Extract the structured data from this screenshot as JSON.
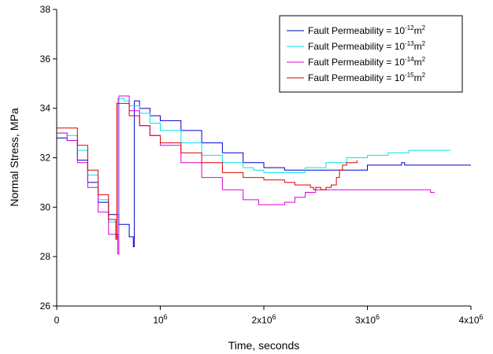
{
  "chart_data": {
    "type": "line",
    "xlabel": "Time, seconds",
    "ylabel": "Normal Stress, MPa",
    "xlim": [
      0,
      4000000
    ],
    "ylim": [
      26,
      38
    ],
    "x_ticks": [
      {
        "value": 0,
        "base": "0",
        "exp": ""
      },
      {
        "value": 1000000,
        "base": "10",
        "exp": "6"
      },
      {
        "value": 2000000,
        "base": "2x10",
        "exp": "6"
      },
      {
        "value": 3000000,
        "base": "3x10",
        "exp": "6"
      },
      {
        "value": 4000000,
        "base": "4x10",
        "exp": "6"
      }
    ],
    "y_ticks": [
      26,
      28,
      30,
      32,
      34,
      36,
      38
    ],
    "grid": false,
    "legend_position": "top-right",
    "series": [
      {
        "name": "Fault Permeability = 10",
        "name_exp": "-12",
        "name_suffix": "m",
        "name_suffix_exp": "2",
        "color": "#0000cc",
        "points": [
          [
            0,
            32.8
          ],
          [
            100000,
            32.7
          ],
          [
            200000,
            31.9
          ],
          [
            300000,
            31.0
          ],
          [
            400000,
            30.2
          ],
          [
            500000,
            29.7
          ],
          [
            600000,
            29.3
          ],
          [
            700000,
            28.8
          ],
          [
            740000,
            28.4
          ],
          [
            750000,
            34.3
          ],
          [
            800000,
            34.0
          ],
          [
            900000,
            33.7
          ],
          [
            1000000,
            33.5
          ],
          [
            1200000,
            33.1
          ],
          [
            1400000,
            32.6
          ],
          [
            1600000,
            32.2
          ],
          [
            1800000,
            31.8
          ],
          [
            2000000,
            31.6
          ],
          [
            2200000,
            31.5
          ],
          [
            2400000,
            31.5
          ],
          [
            2600000,
            31.5
          ],
          [
            3000000,
            31.7
          ],
          [
            3300000,
            31.7
          ],
          [
            3330000,
            31.8
          ],
          [
            3360000,
            31.7
          ],
          [
            4000000,
            31.7
          ]
        ]
      },
      {
        "name": "Fault Permeability = 10",
        "name_exp": "-13",
        "name_suffix": "m",
        "name_suffix_exp": "2",
        "color": "#00e5ee",
        "points": [
          [
            0,
            33.0
          ],
          [
            100000,
            32.9
          ],
          [
            200000,
            32.3
          ],
          [
            300000,
            31.3
          ],
          [
            400000,
            30.3
          ],
          [
            500000,
            29.4
          ],
          [
            570000,
            28.8
          ],
          [
            590000,
            34.4
          ],
          [
            650000,
            34.3
          ],
          [
            700000,
            34.1
          ],
          [
            800000,
            33.8
          ],
          [
            900000,
            33.4
          ],
          [
            1000000,
            33.1
          ],
          [
            1200000,
            32.6
          ],
          [
            1400000,
            32.1
          ],
          [
            1600000,
            31.8
          ],
          [
            1800000,
            31.6
          ],
          [
            1900000,
            31.5
          ],
          [
            2000000,
            31.4
          ],
          [
            2200000,
            31.4
          ],
          [
            2400000,
            31.6
          ],
          [
            2600000,
            31.8
          ],
          [
            2800000,
            32.0
          ],
          [
            3000000,
            32.1
          ],
          [
            3200000,
            32.2
          ],
          [
            3400000,
            32.3
          ],
          [
            3800000,
            32.3
          ]
        ]
      },
      {
        "name": "Fault Permeability = 10",
        "name_exp": "-14",
        "name_suffix": "m",
        "name_suffix_exp": "2",
        "color": "#dd00dd",
        "points": [
          [
            0,
            33.0
          ],
          [
            100000,
            32.7
          ],
          [
            200000,
            31.8
          ],
          [
            300000,
            30.8
          ],
          [
            400000,
            29.8
          ],
          [
            500000,
            28.9
          ],
          [
            590000,
            28.1
          ],
          [
            600000,
            34.5
          ],
          [
            700000,
            33.9
          ],
          [
            800000,
            33.3
          ],
          [
            900000,
            32.9
          ],
          [
            1000000,
            32.5
          ],
          [
            1200000,
            31.8
          ],
          [
            1400000,
            31.2
          ],
          [
            1600000,
            30.7
          ],
          [
            1800000,
            30.3
          ],
          [
            1950000,
            30.1
          ],
          [
            2100000,
            30.1
          ],
          [
            2200000,
            30.2
          ],
          [
            2300000,
            30.4
          ],
          [
            2400000,
            30.6
          ],
          [
            2500000,
            30.7
          ],
          [
            2800000,
            30.7
          ],
          [
            3200000,
            30.7
          ],
          [
            3600000,
            30.7
          ],
          [
            3610000,
            30.6
          ],
          [
            3650000,
            30.6
          ]
        ]
      },
      {
        "name": "Fault Permeability = 10",
        "name_exp": "-15",
        "name_suffix": "m",
        "name_suffix_exp": "2",
        "color": "#dd0000",
        "points": [
          [
            0,
            33.2
          ],
          [
            100000,
            33.2
          ],
          [
            200000,
            32.5
          ],
          [
            300000,
            31.5
          ],
          [
            400000,
            30.5
          ],
          [
            500000,
            29.5
          ],
          [
            570000,
            28.7
          ],
          [
            580000,
            34.2
          ],
          [
            700000,
            33.7
          ],
          [
            800000,
            33.3
          ],
          [
            900000,
            32.9
          ],
          [
            1000000,
            32.6
          ],
          [
            1200000,
            32.2
          ],
          [
            1400000,
            31.8
          ],
          [
            1600000,
            31.4
          ],
          [
            1800000,
            31.2
          ],
          [
            2000000,
            31.1
          ],
          [
            2200000,
            31.0
          ],
          [
            2300000,
            30.9
          ],
          [
            2450000,
            30.8
          ],
          [
            2480000,
            30.7
          ],
          [
            2500000,
            30.8
          ],
          [
            2550000,
            30.7
          ],
          [
            2600000,
            30.8
          ],
          [
            2650000,
            30.9
          ],
          [
            2700000,
            31.2
          ],
          [
            2730000,
            31.5
          ],
          [
            2760000,
            31.7
          ],
          [
            2800000,
            31.8
          ],
          [
            2900000,
            31.8
          ],
          [
            2900000,
            31.9
          ]
        ]
      }
    ]
  }
}
